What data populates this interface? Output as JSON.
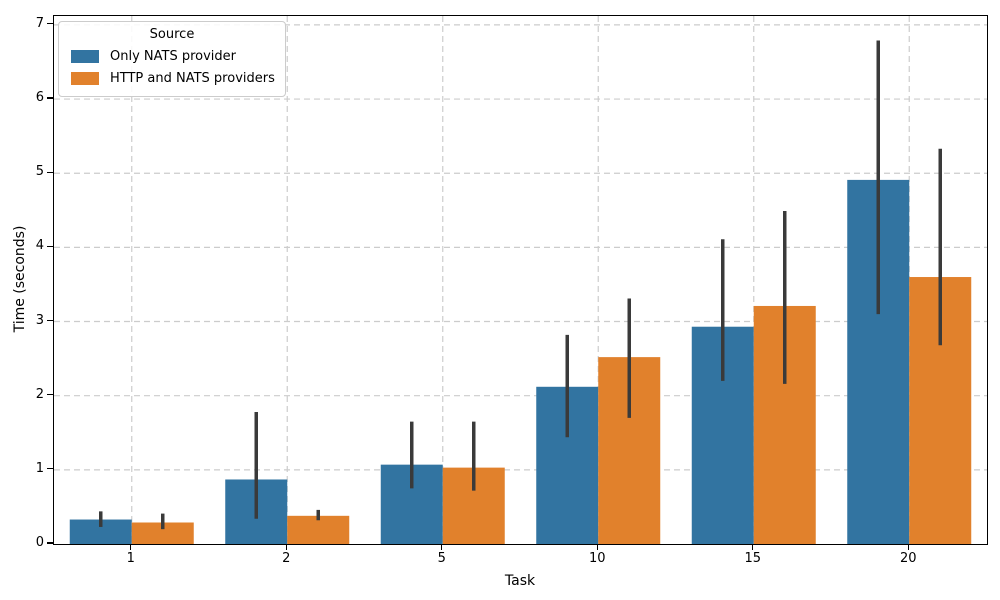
{
  "chart_data": {
    "type": "bar",
    "title": "",
    "xlabel": "Task",
    "ylabel": "Time (seconds)",
    "categories": [
      "1",
      "2",
      "5",
      "10",
      "15",
      "20"
    ],
    "series": [
      {
        "name": "Only NATS provider",
        "color": "#3274a1",
        "values": [
          0.33,
          0.87,
          1.07,
          2.12,
          2.93,
          4.91
        ],
        "ci_low": [
          0.23,
          0.34,
          0.75,
          1.44,
          2.2,
          3.1
        ],
        "ci_high": [
          0.44,
          1.78,
          1.65,
          2.82,
          4.11,
          6.79
        ]
      },
      {
        "name": "HTTP and NATS providers",
        "color": "#e1812c",
        "values": [
          0.29,
          0.38,
          1.03,
          2.52,
          3.21,
          3.6
        ],
        "ci_low": [
          0.2,
          0.32,
          0.72,
          1.7,
          2.16,
          2.68
        ],
        "ci_high": [
          0.41,
          0.46,
          1.65,
          3.31,
          4.49,
          5.33
        ]
      }
    ],
    "ylim": [
      0,
      7.12
    ],
    "yticks": [
      0,
      1,
      2,
      3,
      4,
      5,
      6,
      7
    ],
    "legend": {
      "title": "Source",
      "position": "upper-left"
    },
    "grid": {
      "on": true,
      "style": "dashed",
      "color": "#cccccc"
    },
    "error_bar_color": "#3a3a3a"
  }
}
